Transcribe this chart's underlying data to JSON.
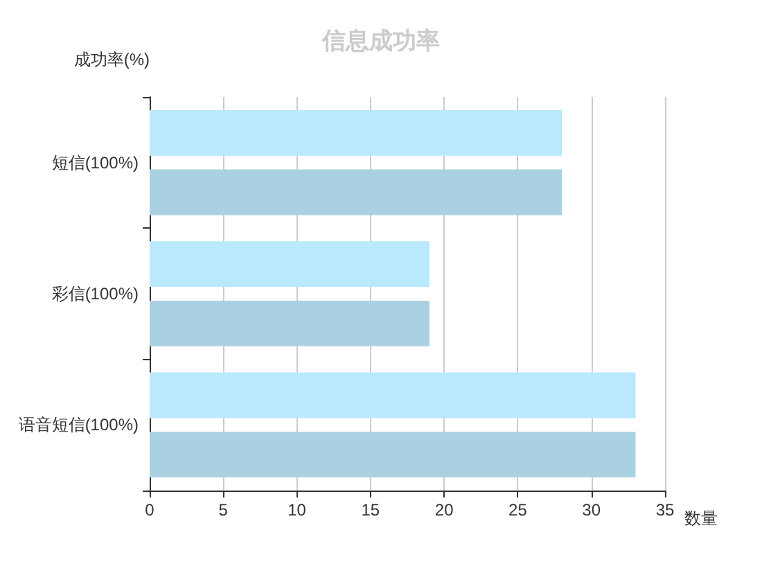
{
  "chart_data": {
    "type": "bar",
    "orientation": "horizontal",
    "title": "信息成功率",
    "ylabel": "成功率(%)",
    "xlabel": "数量",
    "categories": [
      "短信(100%)",
      "彩信(100%)",
      "语音短信(100%)"
    ],
    "series": [
      {
        "color": "#bae9fd",
        "values": [
          28,
          19,
          33
        ]
      },
      {
        "color": "#aad1e2",
        "values": [
          28,
          19,
          33
        ]
      }
    ],
    "xlim": [
      0,
      35
    ],
    "xticks": [
      0,
      5,
      10,
      15,
      20,
      25,
      30,
      35
    ],
    "grid": "x"
  }
}
